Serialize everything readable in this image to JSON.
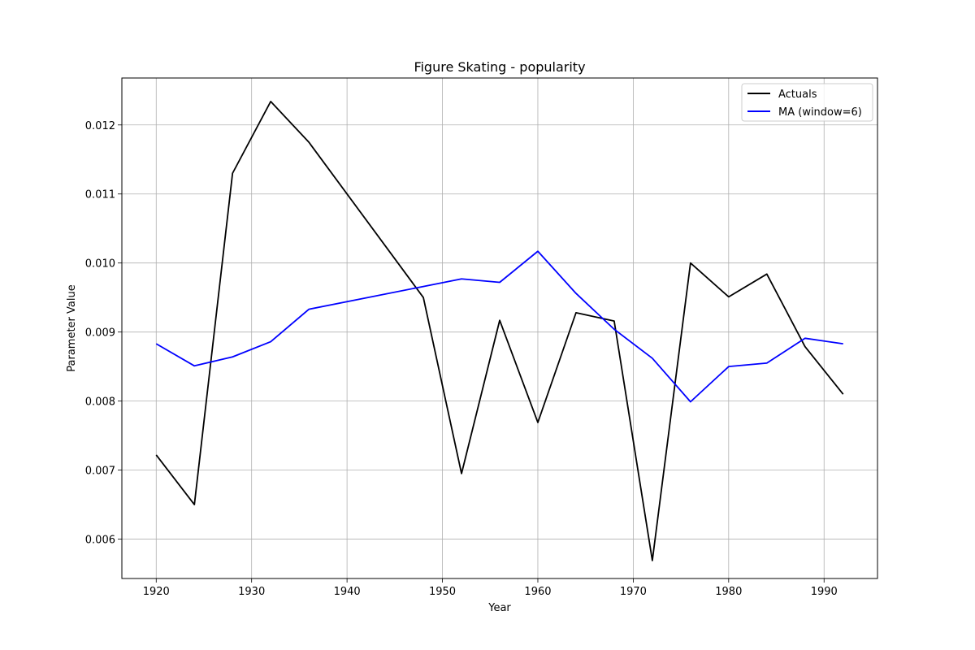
{
  "chart_data": {
    "type": "line",
    "title": "Figure Skating - popularity",
    "xlabel": "Year",
    "ylabel": "Parameter Value",
    "xlim": [
      1916.4,
      1995.6
    ],
    "ylim": [
      0.00543,
      0.01268
    ],
    "xticks": [
      1920,
      1930,
      1940,
      1950,
      1960,
      1970,
      1980,
      1990
    ],
    "yticks": [
      0.006,
      0.007,
      0.008,
      0.009,
      0.01,
      0.011,
      0.012
    ],
    "ytick_labels": [
      "0.006",
      "0.007",
      "0.008",
      "0.009",
      "0.010",
      "0.011",
      "0.012"
    ],
    "grid": true,
    "legend": {
      "position": "upper-right"
    },
    "x": [
      1920,
      1924,
      1928,
      1932,
      1936,
      1948,
      1952,
      1956,
      1960,
      1964,
      1968,
      1972,
      1976,
      1980,
      1984,
      1988,
      1992
    ],
    "series": [
      {
        "name": "Actuals",
        "color": "#000000",
        "values": [
          0.00722,
          0.0065,
          0.0113,
          0.01234,
          0.01175,
          0.0095,
          0.00695,
          0.00917,
          0.00769,
          0.00928,
          0.00916,
          0.00569,
          0.01,
          0.00951,
          0.00984,
          0.00879,
          0.0081
        ]
      },
      {
        "name": "MA (window=6)",
        "color": "#0000ff",
        "values": [
          0.00883,
          0.00851,
          0.00864,
          0.00886,
          0.00933,
          0.00966,
          0.00977,
          0.00972,
          0.01017,
          0.00956,
          0.00904,
          0.00862,
          0.00799,
          0.0085,
          0.00855,
          0.00891,
          0.00883
        ]
      }
    ]
  }
}
